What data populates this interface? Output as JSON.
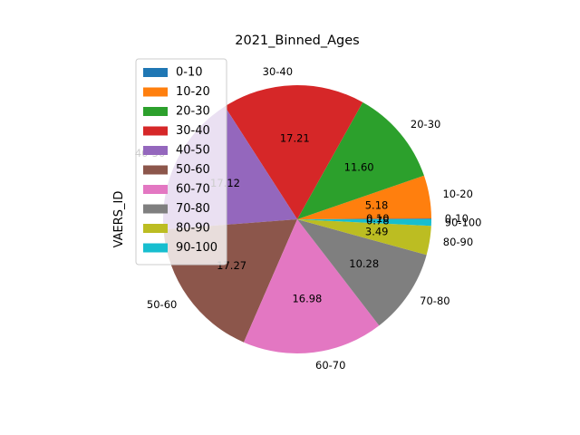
{
  "chart_data": {
    "type": "pie",
    "title": "2021_Binned_Ages",
    "ylabel": "VAERS_ID",
    "categories": [
      "0-10",
      "10-20",
      "20-30",
      "30-40",
      "40-50",
      "50-60",
      "60-70",
      "70-80",
      "80-90",
      "90-100"
    ],
    "values": [
      0.1,
      5.18,
      11.6,
      17.21,
      17.12,
      17.27,
      16.98,
      10.28,
      3.49,
      0.78
    ],
    "value_labels": [
      "0.10",
      "5.18",
      "11.60",
      "17.21",
      "17.12",
      "17.27",
      "16.98",
      "10.28",
      "3.49",
      "0.78"
    ],
    "colors": [
      "#1f77b4",
      "#ff7f0e",
      "#2ca02c",
      "#d62728",
      "#9467bd",
      "#8c564b",
      "#e377c2",
      "#7f7f7f",
      "#bcbd22",
      "#17becf"
    ],
    "start_angle_deg": 0,
    "direction": "counterclockwise",
    "legend_position": "upper-left"
  }
}
